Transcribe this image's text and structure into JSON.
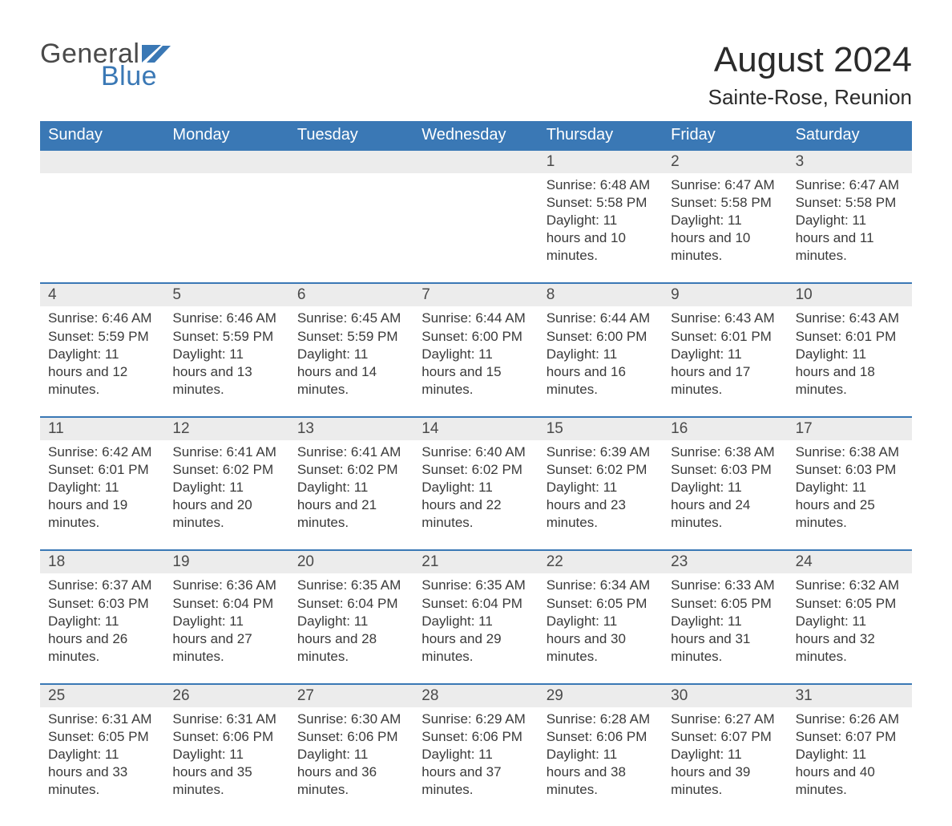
{
  "brand": {
    "word1": "General",
    "word2": "Blue",
    "color_word2": "#3a78b5",
    "color_word1": "#4a4a4a",
    "flag_color": "#3a78b5"
  },
  "header": {
    "title": "August 2024",
    "location": "Sainte-Rose, Reunion",
    "title_color": "#2b2b2b",
    "title_fontsize": 44,
    "location_fontsize": 26
  },
  "colors": {
    "header_row_bg": "#3a78b5",
    "header_row_text": "#ffffff",
    "daynum_bg": "#ececec",
    "week_divider": "#3a78b5",
    "body_text": "#3a3a3a",
    "page_bg": "#ffffff"
  },
  "daysOfWeek": [
    "Sunday",
    "Monday",
    "Tuesday",
    "Wednesday",
    "Thursday",
    "Friday",
    "Saturday"
  ],
  "weeks": [
    [
      null,
      null,
      null,
      null,
      {
        "n": "1",
        "sunrise": "6:48 AM",
        "sunset": "5:58 PM",
        "daylight": "11 hours and 10 minutes."
      },
      {
        "n": "2",
        "sunrise": "6:47 AM",
        "sunset": "5:58 PM",
        "daylight": "11 hours and 10 minutes."
      },
      {
        "n": "3",
        "sunrise": "6:47 AM",
        "sunset": "5:58 PM",
        "daylight": "11 hours and 11 minutes."
      }
    ],
    [
      {
        "n": "4",
        "sunrise": "6:46 AM",
        "sunset": "5:59 PM",
        "daylight": "11 hours and 12 minutes."
      },
      {
        "n": "5",
        "sunrise": "6:46 AM",
        "sunset": "5:59 PM",
        "daylight": "11 hours and 13 minutes."
      },
      {
        "n": "6",
        "sunrise": "6:45 AM",
        "sunset": "5:59 PM",
        "daylight": "11 hours and 14 minutes."
      },
      {
        "n": "7",
        "sunrise": "6:44 AM",
        "sunset": "6:00 PM",
        "daylight": "11 hours and 15 minutes."
      },
      {
        "n": "8",
        "sunrise": "6:44 AM",
        "sunset": "6:00 PM",
        "daylight": "11 hours and 16 minutes."
      },
      {
        "n": "9",
        "sunrise": "6:43 AM",
        "sunset": "6:01 PM",
        "daylight": "11 hours and 17 minutes."
      },
      {
        "n": "10",
        "sunrise": "6:43 AM",
        "sunset": "6:01 PM",
        "daylight": "11 hours and 18 minutes."
      }
    ],
    [
      {
        "n": "11",
        "sunrise": "6:42 AM",
        "sunset": "6:01 PM",
        "daylight": "11 hours and 19 minutes."
      },
      {
        "n": "12",
        "sunrise": "6:41 AM",
        "sunset": "6:02 PM",
        "daylight": "11 hours and 20 minutes."
      },
      {
        "n": "13",
        "sunrise": "6:41 AM",
        "sunset": "6:02 PM",
        "daylight": "11 hours and 21 minutes."
      },
      {
        "n": "14",
        "sunrise": "6:40 AM",
        "sunset": "6:02 PM",
        "daylight": "11 hours and 22 minutes."
      },
      {
        "n": "15",
        "sunrise": "6:39 AM",
        "sunset": "6:02 PM",
        "daylight": "11 hours and 23 minutes."
      },
      {
        "n": "16",
        "sunrise": "6:38 AM",
        "sunset": "6:03 PM",
        "daylight": "11 hours and 24 minutes."
      },
      {
        "n": "17",
        "sunrise": "6:38 AM",
        "sunset": "6:03 PM",
        "daylight": "11 hours and 25 minutes."
      }
    ],
    [
      {
        "n": "18",
        "sunrise": "6:37 AM",
        "sunset": "6:03 PM",
        "daylight": "11 hours and 26 minutes."
      },
      {
        "n": "19",
        "sunrise": "6:36 AM",
        "sunset": "6:04 PM",
        "daylight": "11 hours and 27 minutes."
      },
      {
        "n": "20",
        "sunrise": "6:35 AM",
        "sunset": "6:04 PM",
        "daylight": "11 hours and 28 minutes."
      },
      {
        "n": "21",
        "sunrise": "6:35 AM",
        "sunset": "6:04 PM",
        "daylight": "11 hours and 29 minutes."
      },
      {
        "n": "22",
        "sunrise": "6:34 AM",
        "sunset": "6:05 PM",
        "daylight": "11 hours and 30 minutes."
      },
      {
        "n": "23",
        "sunrise": "6:33 AM",
        "sunset": "6:05 PM",
        "daylight": "11 hours and 31 minutes."
      },
      {
        "n": "24",
        "sunrise": "6:32 AM",
        "sunset": "6:05 PM",
        "daylight": "11 hours and 32 minutes."
      }
    ],
    [
      {
        "n": "25",
        "sunrise": "6:31 AM",
        "sunset": "6:05 PM",
        "daylight": "11 hours and 33 minutes."
      },
      {
        "n": "26",
        "sunrise": "6:31 AM",
        "sunset": "6:06 PM",
        "daylight": "11 hours and 35 minutes."
      },
      {
        "n": "27",
        "sunrise": "6:30 AM",
        "sunset": "6:06 PM",
        "daylight": "11 hours and 36 minutes."
      },
      {
        "n": "28",
        "sunrise": "6:29 AM",
        "sunset": "6:06 PM",
        "daylight": "11 hours and 37 minutes."
      },
      {
        "n": "29",
        "sunrise": "6:28 AM",
        "sunset": "6:06 PM",
        "daylight": "11 hours and 38 minutes."
      },
      {
        "n": "30",
        "sunrise": "6:27 AM",
        "sunset": "6:07 PM",
        "daylight": "11 hours and 39 minutes."
      },
      {
        "n": "31",
        "sunrise": "6:26 AM",
        "sunset": "6:07 PM",
        "daylight": "11 hours and 40 minutes."
      }
    ]
  ],
  "labels": {
    "sunrise": "Sunrise:",
    "sunset": "Sunset:",
    "daylight": "Daylight:"
  }
}
